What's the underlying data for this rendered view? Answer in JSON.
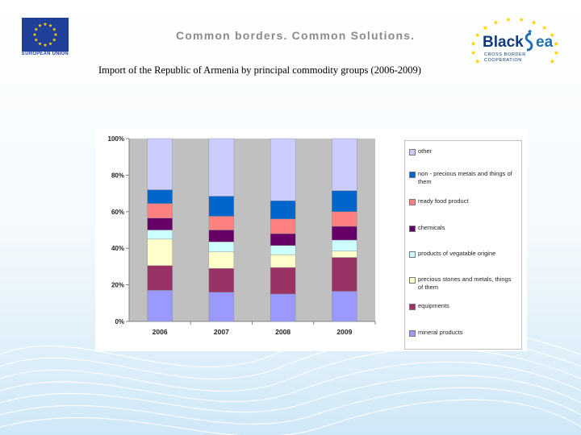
{
  "header": {
    "eu_label": "EUROPEAN UNION",
    "tagline": "Common borders. Common Solutions.",
    "blacksea_word1": "Black",
    "blacksea_word2": "ea",
    "blacksea_sub1": "CROSS BORDER",
    "blacksea_sub2": "COOPERATION"
  },
  "title": "Import of the Republic of Armenia by principal commodity groups (2006-2009)",
  "colors": {
    "page_bg": "#ffffff",
    "plot_bg": "#c0c0c0",
    "eu_blue": "#1f3f99",
    "star_yellow": "#ffd400",
    "brand_blue": "#123a7a"
  },
  "chart_data": {
    "type": "bar",
    "stacked": true,
    "percent": true,
    "title": "Import of the Republic of Armenia by principal commodity groups (2006-2009)",
    "xlabel": "",
    "ylabel": "",
    "ylim": [
      0,
      100
    ],
    "y_ticks": [
      "0%",
      "20%",
      "40%",
      "60%",
      "80%",
      "100%"
    ],
    "categories": [
      "2006",
      "2007",
      "2008",
      "2009"
    ],
    "grid": false,
    "legend_position": "right",
    "series": [
      {
        "name": "mineral products",
        "color": "#9999ff",
        "values": [
          17,
          16,
          15,
          16.5
        ]
      },
      {
        "name": "equipments",
        "color": "#993366",
        "values": [
          13.5,
          13,
          14.5,
          18.5
        ]
      },
      {
        "name": "precious stones and metals, things of them",
        "color": "#ffffcc",
        "values": [
          14.5,
          9,
          7,
          3.5
        ]
      },
      {
        "name": "products of vegatable origine",
        "color": "#ccffff",
        "values": [
          5,
          5.5,
          5,
          6
        ]
      },
      {
        "name": "chemicals",
        "color": "#660066",
        "values": [
          6.5,
          6.5,
          6.5,
          7.5
        ]
      },
      {
        "name": "ready food product",
        "color": "#ff8080",
        "values": [
          8,
          7.5,
          8,
          8
        ]
      },
      {
        "name": "non - precious metals and things of them",
        "color": "#0066cc",
        "values": [
          7.5,
          11,
          10,
          11.5
        ]
      },
      {
        "name": "other",
        "color": "#ccccff",
        "values": [
          28,
          31.5,
          34,
          28.5
        ]
      }
    ]
  }
}
